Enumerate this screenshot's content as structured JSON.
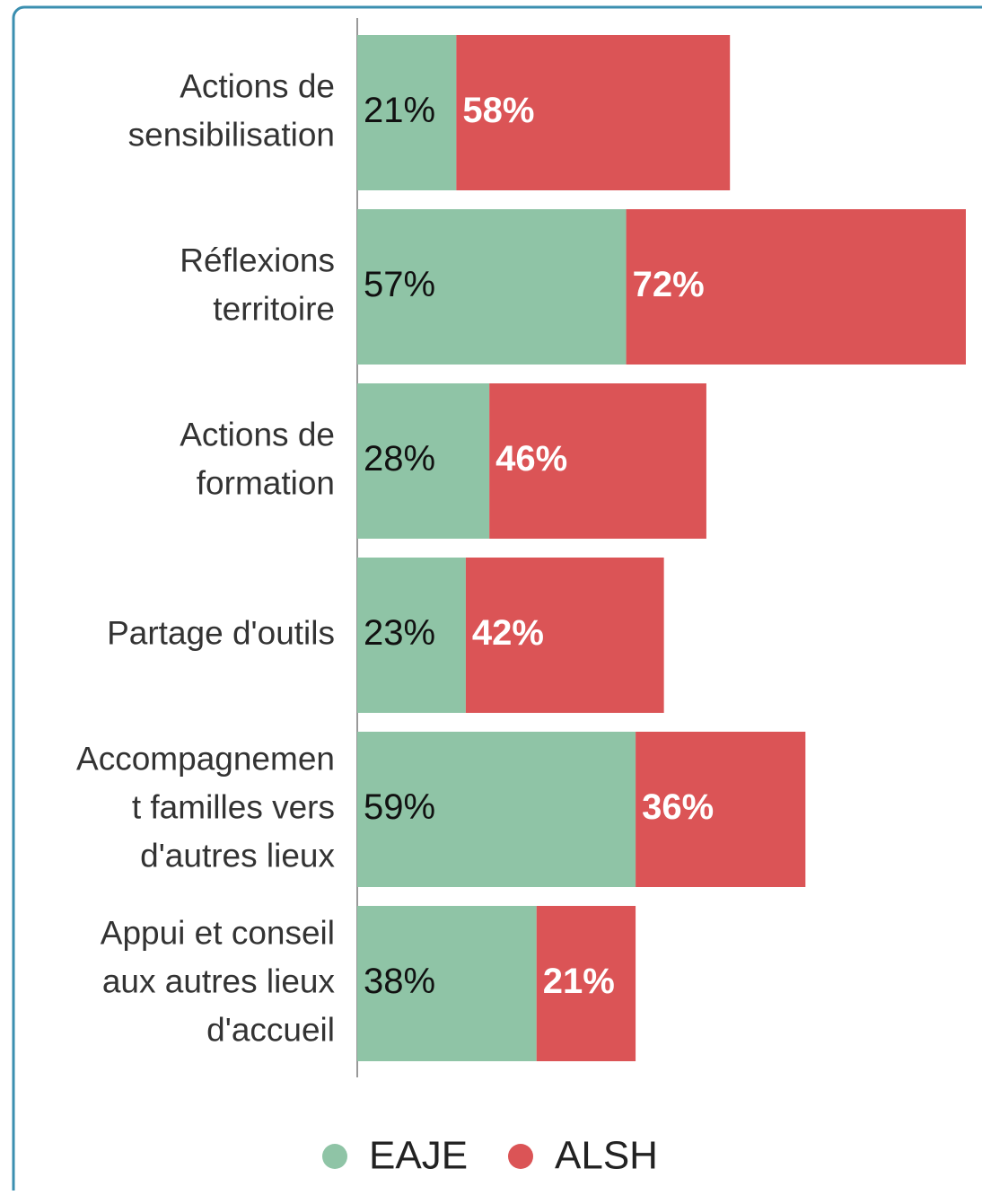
{
  "chart_data": {
    "type": "stacked-bar-horizontal",
    "categories": [
      [
        "Actions de",
        "sensibilisation"
      ],
      [
        "Réflexions",
        "territoire"
      ],
      [
        "Actions de",
        "formation"
      ],
      [
        "Partage d'outils"
      ],
      [
        "Accompagnemen",
        "t familles vers",
        "d'autres lieux"
      ],
      [
        "Appui et conseil",
        "aux autres lieux",
        "d'accueil"
      ]
    ],
    "series": [
      {
        "name": "EAJE",
        "color": "#8fc4a6",
        "values": [
          21,
          57,
          28,
          23,
          59,
          38
        ],
        "value_labels": [
          "21%",
          "57%",
          "28%",
          "23%",
          "59%",
          "38%"
        ]
      },
      {
        "name": "ALSH",
        "color": "#db5456",
        "values": [
          58,
          72,
          46,
          42,
          36,
          21
        ],
        "value_labels": [
          "58%",
          "72%",
          "46%",
          "42%",
          "36%",
          "21%"
        ]
      }
    ],
    "legend": "bottom"
  }
}
